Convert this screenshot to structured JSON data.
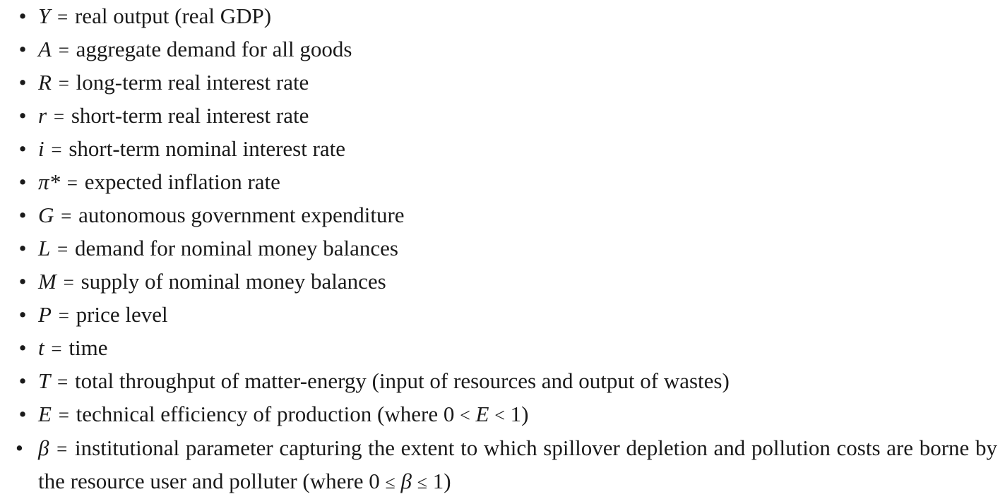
{
  "bullet_char": "•",
  "equals": "=",
  "definitions": [
    {
      "symbol": "Y",
      "text": "real output (real GDP)"
    },
    {
      "symbol": "A",
      "text": "aggregate demand for all goods"
    },
    {
      "symbol": "R",
      "text": "long-term real interest rate"
    },
    {
      "symbol": "r",
      "text": "short-term real interest rate"
    },
    {
      "symbol": "i",
      "text": "short-term nominal interest rate"
    },
    {
      "symbol": "π*",
      "text": "expected inflation rate"
    },
    {
      "symbol": "G",
      "text": "autonomous government expenditure"
    },
    {
      "symbol": "L",
      "text": "demand for nominal money balances"
    },
    {
      "symbol": "M",
      "text": "supply of nominal money balances"
    },
    {
      "symbol": "P",
      "text": "price level"
    },
    {
      "symbol": "t",
      "text": "time"
    },
    {
      "symbol": "T",
      "text": "total throughput of matter-energy (input of resources and output of wastes)"
    },
    {
      "symbol": "E",
      "text": "technical efficiency of production (where ",
      "cond": [
        "0",
        "<",
        "E",
        "<",
        "1"
      ],
      "tail": ")"
    },
    {
      "symbol": "β",
      "text": "institutional parameter capturing the extent to which spillover depletion and pollution costs are borne by the resource user and polluter (where ",
      "cond": [
        "0",
        "≤",
        "β",
        "≤",
        "1"
      ],
      "tail": ")"
    }
  ]
}
